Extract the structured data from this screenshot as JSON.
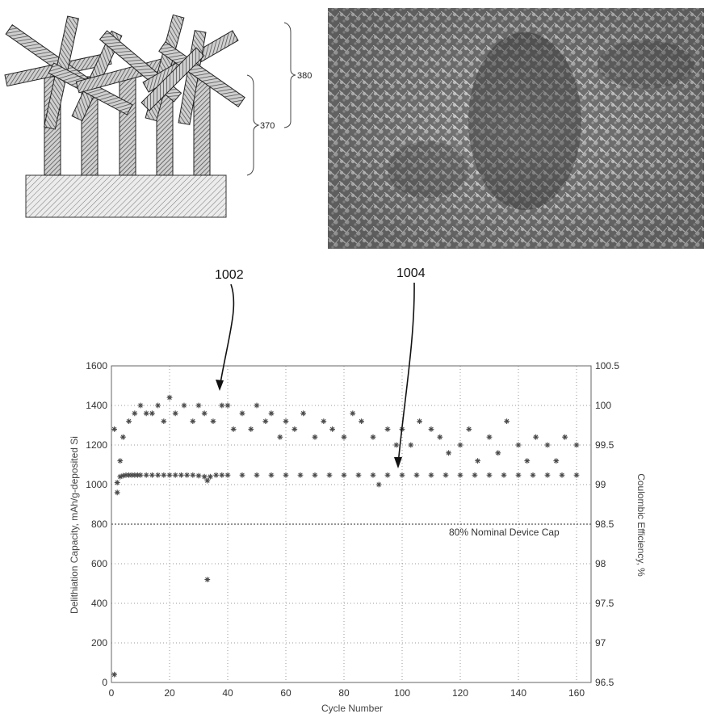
{
  "diagram": {
    "label_380": "380",
    "label_370": "370"
  },
  "callouts": {
    "label_1002": "1002",
    "label_1004": "1004"
  },
  "chart_data": {
    "type": "scatter",
    "title": "",
    "xlabel": "Cycle Number",
    "ylabel": "Delithiation Capacity, mAh/g-deposited Si",
    "y2label": "Coulombic Efficiency, %",
    "xlim": [
      0,
      165
    ],
    "ylim": [
      0,
      1600
    ],
    "y2lim": [
      96.5,
      100.5
    ],
    "xticks": [
      "0",
      "20",
      "40",
      "60",
      "80",
      "100",
      "120",
      "140",
      "160"
    ],
    "yticks": [
      "0",
      "200",
      "400",
      "600",
      "800",
      "1000",
      "1200",
      "1400",
      "1600"
    ],
    "y2ticks": [
      "96.5",
      "97",
      "97.5",
      "98",
      "98.5",
      "99",
      "99.5",
      "100",
      "100.5"
    ],
    "grid": true,
    "reference_line": {
      "y": 800,
      "label": "80% Nominal Device Cap"
    },
    "series": [
      {
        "axis": "left",
        "x": [
          1,
          2,
          3,
          4,
          5,
          6,
          7,
          8,
          9,
          10,
          12,
          14,
          16,
          18,
          20,
          22,
          24,
          26,
          28,
          30,
          32,
          33,
          34,
          36,
          38,
          40,
          45,
          50,
          55,
          60,
          65,
          70,
          75,
          80,
          85,
          90,
          95,
          100,
          105,
          110,
          115,
          120,
          125,
          130,
          135,
          140,
          145,
          150,
          155,
          160
        ],
        "values": [
          40,
          1010,
          1040,
          1045,
          1048,
          1048,
          1048,
          1048,
          1048,
          1048,
          1048,
          1048,
          1048,
          1048,
          1048,
          1048,
          1048,
          1048,
          1048,
          1045,
          1040,
          1020,
          1040,
          1048,
          1048,
          1048,
          1048,
          1048,
          1048,
          1048,
          1048,
          1048,
          1048,
          1048,
          1048,
          1048,
          1048,
          1048,
          1048,
          1048,
          1048,
          1048,
          1048,
          1048,
          1048,
          1048,
          1048,
          1048,
          1048,
          1048
        ]
      },
      {
        "axis": "right",
        "x": [
          1,
          2,
          3,
          4,
          6,
          8,
          10,
          12,
          14,
          16,
          18,
          20,
          22,
          25,
          28,
          30,
          32,
          33,
          35,
          38,
          40,
          42,
          45,
          48,
          50,
          53,
          55,
          58,
          60,
          63,
          66,
          70,
          73,
          76,
          80,
          83,
          86,
          90,
          92,
          95,
          98,
          100,
          103,
          106,
          110,
          113,
          116,
          120,
          123,
          126,
          130,
          133,
          136,
          140,
          143,
          146,
          150,
          153,
          156,
          160
        ],
        "values": [
          99.7,
          98.9,
          99.3,
          99.6,
          99.8,
          99.9,
          100.0,
          99.9,
          99.9,
          100.0,
          99.8,
          100.1,
          99.9,
          100.0,
          99.8,
          100.0,
          99.9,
          97.8,
          99.8,
          100.0,
          100.0,
          99.7,
          99.9,
          99.7,
          100.0,
          99.8,
          99.9,
          99.6,
          99.8,
          99.7,
          99.9,
          99.6,
          99.8,
          99.7,
          99.6,
          99.9,
          99.8,
          99.6,
          99.0,
          99.7,
          99.5,
          99.7,
          99.5,
          99.8,
          99.7,
          99.6,
          99.4,
          99.5,
          99.7,
          99.3,
          99.6,
          99.4,
          99.8,
          99.5,
          99.3,
          99.6,
          99.5,
          99.3,
          99.6,
          99.5
        ]
      }
    ]
  }
}
